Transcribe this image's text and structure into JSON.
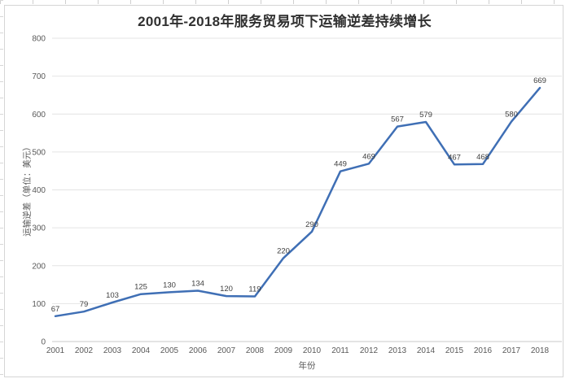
{
  "chart_data": {
    "type": "line",
    "title": "2001年-2018年服务贸易项下运输逆差持续增长",
    "xlabel": "年份",
    "ylabel": "运输逆差（单位：美元）",
    "categories": [
      "2001",
      "2002",
      "2003",
      "2004",
      "2005",
      "2006",
      "2007",
      "2008",
      "2009",
      "2010",
      "2011",
      "2012",
      "2013",
      "2014",
      "2015",
      "2016",
      "2017",
      "2018"
    ],
    "values": [
      67,
      79,
      103,
      125,
      130,
      134,
      120,
      119,
      220,
      290,
      449,
      469,
      567,
      579,
      467,
      468,
      580,
      669
    ],
    "data_labels_shown": true,
    "ylim": [
      0,
      800
    ],
    "yticks": [
      0,
      100,
      200,
      300,
      400,
      500,
      600,
      700,
      800
    ],
    "grid": "horizontal",
    "legend": "none",
    "colors": {
      "line": "#3F6FB5",
      "grid": "#E4E4E4",
      "axis_line": "#C8C8C8",
      "tick_label": "#595959",
      "data_label": "#3F3F3F",
      "title": "#303030",
      "chart_border": "#D5D5D5",
      "background": "#FFFFFF"
    }
  }
}
